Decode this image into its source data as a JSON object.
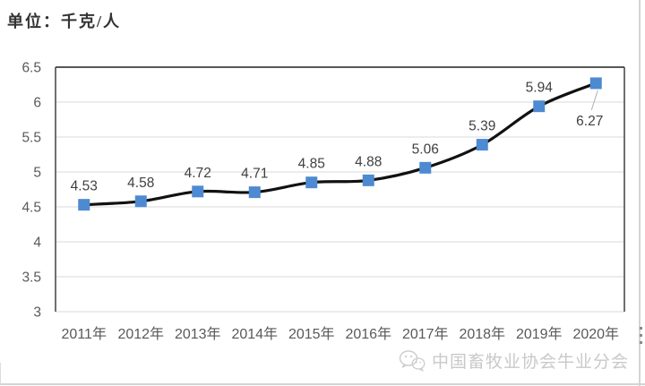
{
  "header": {
    "unit_label": "单位：千克/人"
  },
  "chart_data": {
    "type": "line",
    "title": "",
    "xlabel": "",
    "ylabel": "",
    "unit": "千克/人",
    "categories": [
      "2011年",
      "2012年",
      "2013年",
      "2014年",
      "2015年",
      "2016年",
      "2017年",
      "2018年",
      "2019年",
      "2020年"
    ],
    "values": [
      4.53,
      4.58,
      4.72,
      4.71,
      4.85,
      4.88,
      5.06,
      5.39,
      5.94,
      6.27
    ],
    "data_labels": [
      "4.53",
      "4.58",
      "4.72",
      "4.71",
      "4.85",
      "4.88",
      "5.06",
      "5.39",
      "5.94",
      "6.27"
    ],
    "y_ticks": [
      "3",
      "3.5",
      "4",
      "4.5",
      "5",
      "5.5",
      "6",
      "6.5"
    ],
    "ylim": [
      3,
      6.5
    ],
    "grid": true,
    "legend": "none",
    "smooth": true,
    "marker_shape": "square",
    "callout_index": 9,
    "colors": {
      "line": "#111111",
      "marker": "#4e8ad2",
      "gridline": "#d9d9d9",
      "axis_border": "#404040",
      "axis_text": "#595959",
      "data_label_text": "#404040",
      "leader_line": "#b0b0b0"
    }
  },
  "watermark": {
    "icon": "wechat-icon",
    "text": "中国畜牧业协会牛业分会"
  }
}
